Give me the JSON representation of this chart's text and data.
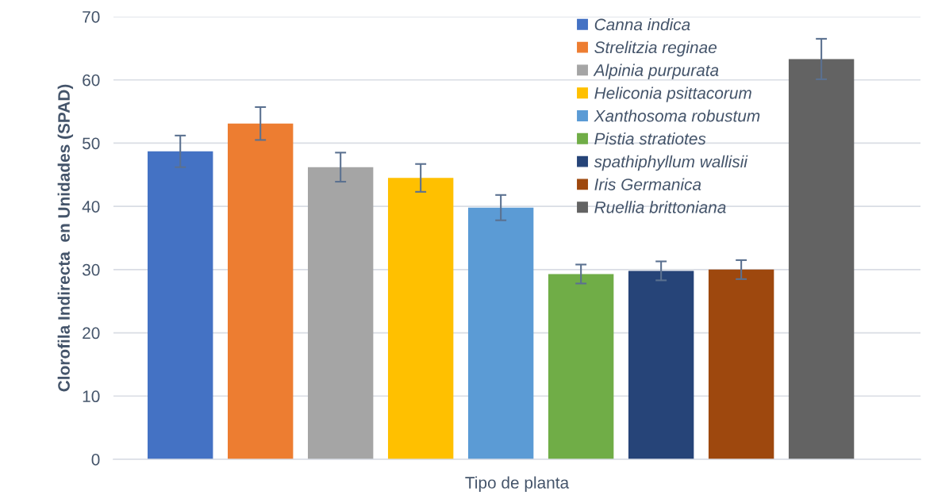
{
  "chart_data": {
    "type": "bar",
    "xlabel": "Tipo de planta",
    "ylabel": "Clorofila Indirecta  en Unidades (SPAD)",
    "categories": [
      null
    ],
    "series": [
      {
        "name": "Canna indica",
        "color": "#4472c4",
        "values": [
          48.7
        ],
        "errors": [
          2.5
        ]
      },
      {
        "name": "Strelitzia reginae",
        "color": "#ed7d31",
        "values": [
          53.1
        ],
        "errors": [
          2.6
        ]
      },
      {
        "name": "Alpinia purpurata",
        "color": "#a5a5a5",
        "values": [
          46.2
        ],
        "errors": [
          2.3
        ]
      },
      {
        "name": "Heliconia psittacorum",
        "color": "#ffc000",
        "values": [
          44.5
        ],
        "errors": [
          2.2
        ]
      },
      {
        "name": "Xanthosoma robustum",
        "color": "#5b9bd5",
        "values": [
          39.8
        ],
        "errors": [
          2.0
        ]
      },
      {
        "name": "Pistia stratiotes",
        "color": "#70ad47",
        "values": [
          29.3
        ],
        "errors": [
          1.5
        ]
      },
      {
        "name": "spathiphyllum wallisii",
        "color": "#264478",
        "values": [
          29.8
        ],
        "errors": [
          1.5
        ]
      },
      {
        "name": "Iris Germanica",
        "color": "#9e480e",
        "values": [
          30.0
        ],
        "errors": [
          1.5
        ]
      },
      {
        "name": "Ruellia brittoniana",
        "color": "#636363",
        "values": [
          63.3
        ],
        "errors": [
          3.2
        ]
      }
    ],
    "ylim": [
      0,
      70
    ],
    "yticks": [
      0,
      10,
      20,
      30,
      40,
      50,
      60,
      70
    ],
    "grid": "y",
    "legend": "top right"
  }
}
